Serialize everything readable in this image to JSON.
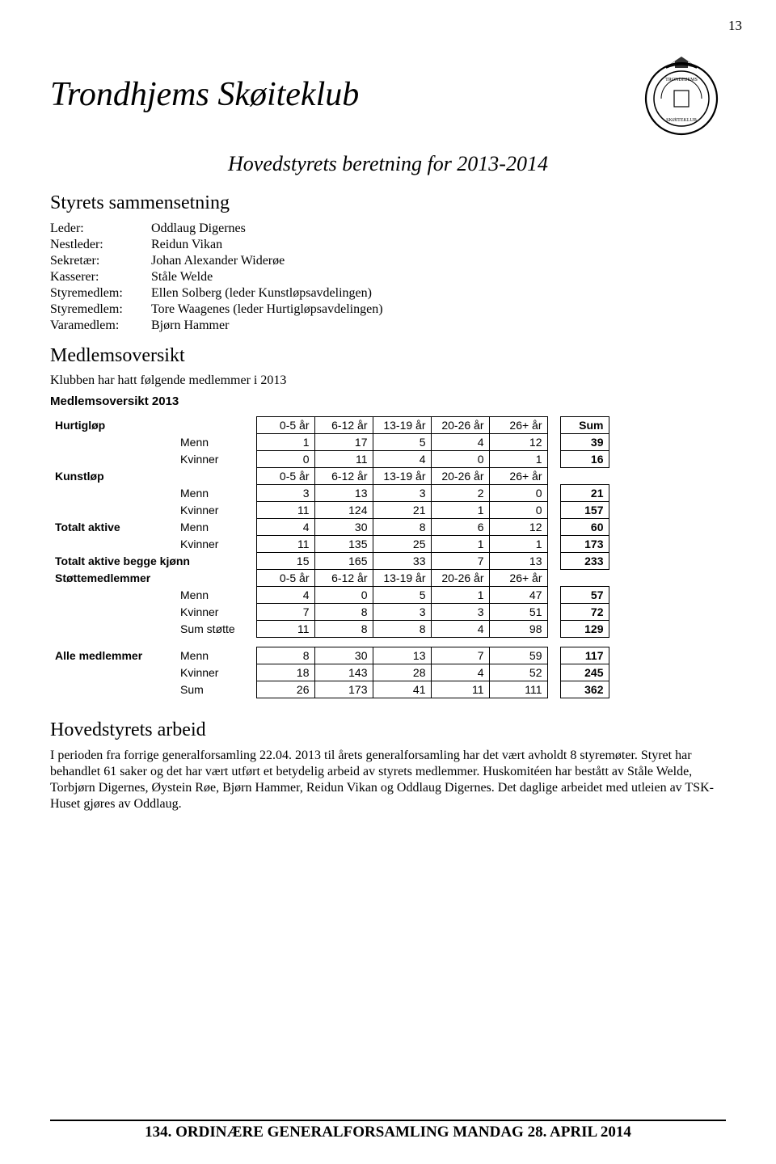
{
  "page_number": "13",
  "header": {
    "club_name": "Trondhjems Skøiteklub"
  },
  "title": "Hovedstyrets beretning for 2013-2014",
  "section1_heading": "Styrets sammensetning",
  "composition": {
    "rows": [
      {
        "label": "Leder:",
        "value": "Oddlaug Digernes"
      },
      {
        "label": "Nestleder:",
        "value": "Reidun Vikan"
      },
      {
        "label": "Sekretær:",
        "value": "Johan Alexander Widerøe"
      },
      {
        "label": "Kasserer:",
        "value": "Ståle Welde"
      },
      {
        "label": "Styremedlem:",
        "value": "Ellen Solberg (leder Kunstløpsavdelingen)"
      },
      {
        "label": "Styremedlem:",
        "value": "Tore Waagenes (leder Hurtigløpsavdelingen)"
      },
      {
        "label": "Varamedlem:",
        "value": "Bjørn Hammer"
      }
    ]
  },
  "section2_heading": "Medlemsoversikt",
  "intro_para": "Klubben har hatt følgende medlemmer i 2013",
  "table_title": "Medlemsoversikt 2013",
  "table": {
    "age_headers": [
      "0-5 år",
      "6-12 år",
      "13-19 år",
      "20-26 år",
      "26+ år"
    ],
    "sum_label": "Sum",
    "groups": [
      {
        "label": "Hurtigløp",
        "header": true,
        "rows": [
          {
            "label": "Menn",
            "vals": [
              "1",
              "17",
              "5",
              "4",
              "12"
            ],
            "sum": "39"
          },
          {
            "label": "Kvinner",
            "vals": [
              "0",
              "11",
              "4",
              "0",
              "1"
            ],
            "sum": "16"
          }
        ]
      },
      {
        "label": "Kunstløp",
        "header": true,
        "no_sum": true,
        "rows": [
          {
            "label": "Menn",
            "vals": [
              "3",
              "13",
              "3",
              "2",
              "0"
            ],
            "sum": "21"
          },
          {
            "label": "Kvinner",
            "vals": [
              "11",
              "124",
              "21",
              "1",
              "0"
            ],
            "sum": "157"
          }
        ]
      }
    ],
    "totals": [
      {
        "label": "Totalt aktive",
        "sub": "Menn",
        "vals": [
          "4",
          "30",
          "8",
          "6",
          "12"
        ],
        "sum": "60"
      },
      {
        "label": "",
        "sub": "Kvinner",
        "vals": [
          "11",
          "135",
          "25",
          "1",
          "1"
        ],
        "sum": "173"
      },
      {
        "label": "Totalt aktive begge kjønn",
        "sub": "",
        "vals": [
          "15",
          "165",
          "33",
          "7",
          "13"
        ],
        "sum": "233"
      }
    ],
    "support": {
      "label": "Støttemedlemmer",
      "header": true,
      "no_sum": true,
      "rows": [
        {
          "label": "Menn",
          "vals": [
            "4",
            "0",
            "5",
            "1",
            "47"
          ],
          "sum": "57"
        },
        {
          "label": "Kvinner",
          "vals": [
            "7",
            "8",
            "3",
            "3",
            "51"
          ],
          "sum": "72"
        },
        {
          "label": "Sum støtte",
          "vals": [
            "11",
            "8",
            "8",
            "4",
            "98"
          ],
          "sum": "129"
        }
      ]
    },
    "all": {
      "label": "Alle medlemmer",
      "rows": [
        {
          "label": "Menn",
          "vals": [
            "8",
            "30",
            "13",
            "7",
            "59"
          ],
          "sum": "117"
        },
        {
          "label": "Kvinner",
          "vals": [
            "18",
            "143",
            "28",
            "4",
            "52"
          ],
          "sum": "245"
        },
        {
          "label": "Sum",
          "vals": [
            "26",
            "173",
            "41",
            "11",
            "111"
          ],
          "sum": "362"
        }
      ]
    }
  },
  "section3_heading": "Hovedstyrets arbeid",
  "body_text": "I perioden fra forrige generalforsamling 22.04. 2013 til årets generalforsamling har det vært avholdt 8 styremøter. Styret har behandlet 61 saker og det har vært utført et betydelig arbeid av styrets medlemmer. Huskomitéen har bestått av Ståle Welde, Torbjørn Digernes, Øystein Røe, Bjørn Hammer, Reidun Vikan og Oddlaug Digernes. Det daglige arbeidet med utleien av TSK-Huset gjøres av Oddlaug.",
  "footer": "134. ORDINÆRE GENERALFORSAMLING MANDAG 28. APRIL 2014",
  "colors": {
    "text": "#000000",
    "background": "#ffffff",
    "border": "#000000"
  }
}
